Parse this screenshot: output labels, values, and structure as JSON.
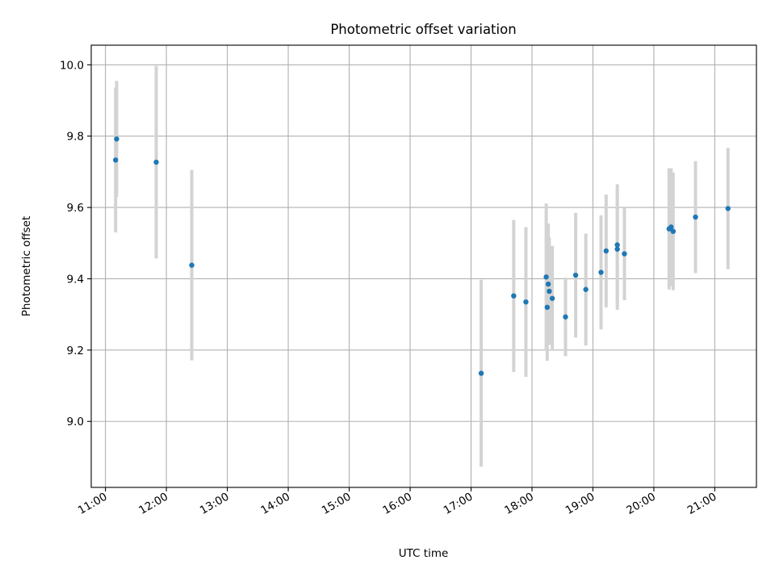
{
  "chart_data": {
    "type": "scatter",
    "title": "Photometric offset variation",
    "xlabel": "UTC time",
    "ylabel": "Photometric offset",
    "xlim": [
      "10:46",
      "21:41"
    ],
    "ylim": [
      8.815,
      10.055
    ],
    "xticks": [
      "11:00",
      "12:00",
      "13:00",
      "14:00",
      "15:00",
      "16:00",
      "17:00",
      "18:00",
      "19:00",
      "20:00",
      "21:00"
    ],
    "yticks": [
      "9.0",
      "9.2",
      "9.4",
      "9.6",
      "9.8",
      "10.0"
    ],
    "grid": true,
    "legend": false,
    "marker_color": "#1f77b4",
    "errorbar_color": "#d3d3d3",
    "points": [
      {
        "t": "11:10",
        "y": 9.733,
        "err": 0.203
      },
      {
        "t": "11:11",
        "y": 9.792,
        "err": 0.163
      },
      {
        "t": "11:50",
        "y": 9.727,
        "err": 0.27
      },
      {
        "t": "12:25",
        "y": 9.438,
        "err": 0.267
      },
      {
        "t": "17:10",
        "y": 9.135,
        "err": 0.262
      },
      {
        "t": "17:42",
        "y": 9.352,
        "err": 0.213
      },
      {
        "t": "17:54",
        "y": 9.335,
        "err": 0.21
      },
      {
        "t": "18:14",
        "y": 9.405,
        "err": 0.206
      },
      {
        "t": "18:15",
        "y": 9.32,
        "err": 0.15
      },
      {
        "t": "18:16",
        "y": 9.385,
        "err": 0.17
      },
      {
        "t": "18:17",
        "y": 9.365,
        "err": 0.15
      },
      {
        "t": "18:20",
        "y": 9.345,
        "err": 0.147
      },
      {
        "t": "18:33",
        "y": 9.293,
        "err": 0.11
      },
      {
        "t": "18:43",
        "y": 9.41,
        "err": 0.175
      },
      {
        "t": "18:53",
        "y": 9.37,
        "err": 0.157
      },
      {
        "t": "19:08",
        "y": 9.418,
        "err": 0.16
      },
      {
        "t": "19:13",
        "y": 9.478,
        "err": 0.158
      },
      {
        "t": "19:24",
        "y": 9.483,
        "err": 0.17
      },
      {
        "t": "19:24",
        "y": 9.495,
        "err": 0.17
      },
      {
        "t": "19:31",
        "y": 9.47,
        "err": 0.13
      },
      {
        "t": "20:15",
        "y": 9.54,
        "err": 0.17
      },
      {
        "t": "20:17",
        "y": 9.545,
        "err": 0.165
      },
      {
        "t": "20:19",
        "y": 9.533,
        "err": 0.165
      },
      {
        "t": "20:41",
        "y": 9.573,
        "err": 0.157
      },
      {
        "t": "21:13",
        "y": 9.597,
        "err": 0.17
      }
    ]
  }
}
